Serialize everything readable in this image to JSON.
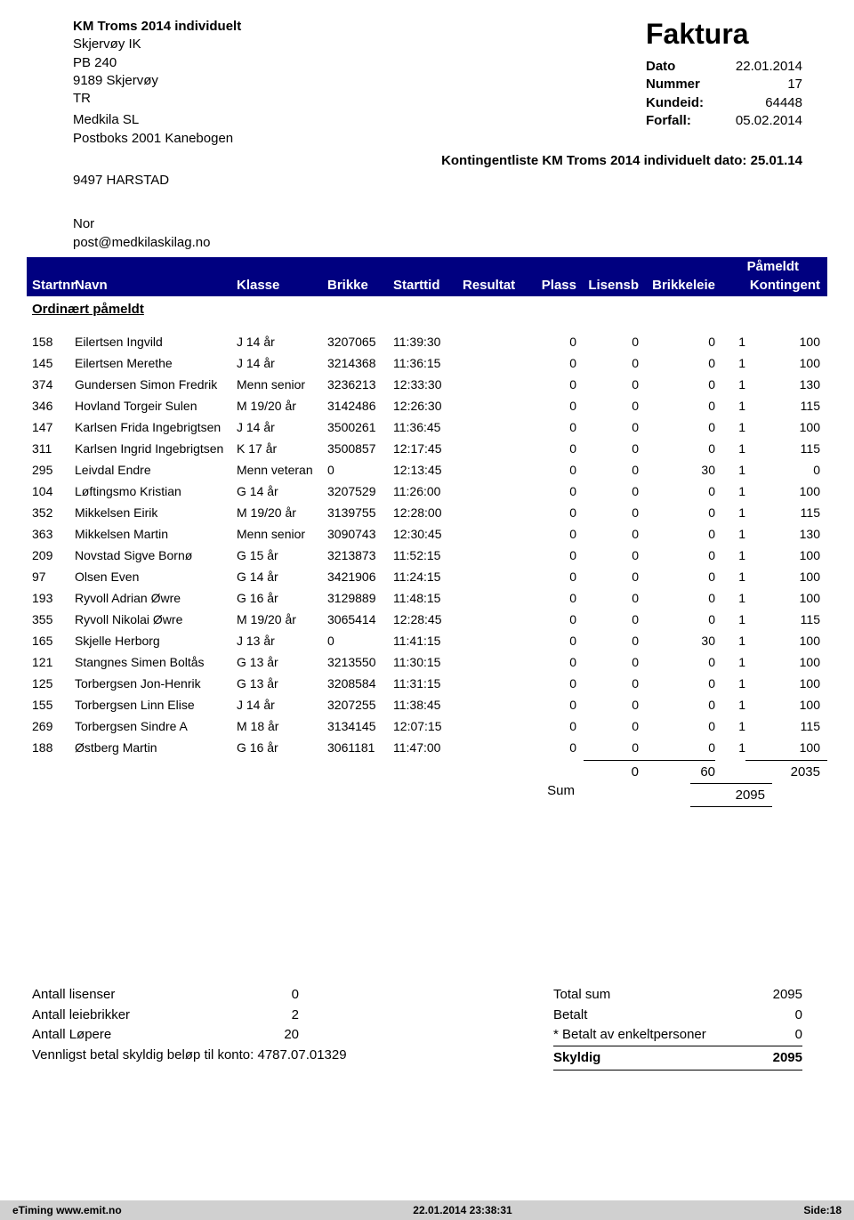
{
  "header": {
    "event_title": "KM Troms 2014 individuelt",
    "sender_name": "Skjervøy IK",
    "sender_pb": "PB 240",
    "sender_city": "9189 Skjervøy",
    "sender_region": "TR",
    "recipient_name": "Medkila SL",
    "recipient_addr": "Postboks 2001 Kanebogen",
    "recipient_city": "9497  HARSTAD",
    "faktura": "Faktura",
    "dato_label": "Dato",
    "dato": "22.01.2014",
    "nummer_label": "Nummer",
    "nummer": "17",
    "kundeid_label": "Kundeid:",
    "kundeid": "64448",
    "forfall_label": "Forfall:",
    "forfall": "05.02.2014",
    "konting_line": "Kontingentliste  KM Troms 2014 individuelt dato: 25.01.14",
    "country": "Nor",
    "email": "post@medkilaskilag.no"
  },
  "column_headers": {
    "pameldt_top": "Påmeldt",
    "startnr": "Startnr",
    "navn": "Navn",
    "klasse": "Klasse",
    "brikke": "Brikke",
    "starttid": "Starttid",
    "resultat": "Resultat",
    "plass": "Plass",
    "lisensb": "Lisensb",
    "brikkeleie": "Brikkeleie",
    "kontingent": "Kontingent"
  },
  "ordinaert_label": "Ordinært påmeldt",
  "rows": [
    {
      "startnr": "158",
      "navn": "Eilertsen  Ingvild",
      "klasse": "J 14 år",
      "brikke": "3207065",
      "starttid": "11:39:30",
      "plass": "0",
      "lisensb": "0",
      "brikkeleie": "0",
      "pameldt": "1",
      "kontingent": "100"
    },
    {
      "startnr": "145",
      "navn": "Eilertsen  Merethe",
      "klasse": "J 14 år",
      "brikke": "3214368",
      "starttid": "11:36:15",
      "plass": "0",
      "lisensb": "0",
      "brikkeleie": "0",
      "pameldt": "1",
      "kontingent": "100"
    },
    {
      "startnr": "374",
      "navn": "Gundersen  Simon Fredrik",
      "klasse": "Menn senior",
      "brikke": "3236213",
      "starttid": "12:33:30",
      "plass": "0",
      "lisensb": "0",
      "brikkeleie": "0",
      "pameldt": "1",
      "kontingent": "130"
    },
    {
      "startnr": "346",
      "navn": "Hovland  Torgeir Sulen",
      "klasse": "M 19/20 år",
      "brikke": "3142486",
      "starttid": "12:26:30",
      "plass": "0",
      "lisensb": "0",
      "brikkeleie": "0",
      "pameldt": "1",
      "kontingent": "115"
    },
    {
      "startnr": "147",
      "navn": "Karlsen  Frida Ingebrigtsen",
      "klasse": "J 14 år",
      "brikke": "3500261",
      "starttid": "11:36:45",
      "plass": "0",
      "lisensb": "0",
      "brikkeleie": "0",
      "pameldt": "1",
      "kontingent": "100"
    },
    {
      "startnr": "311",
      "navn": "Karlsen  Ingrid Ingebrigtsen",
      "klasse": "K 17 år",
      "brikke": "3500857",
      "starttid": "12:17:45",
      "plass": "0",
      "lisensb": "0",
      "brikkeleie": "0",
      "pameldt": "1",
      "kontingent": "115"
    },
    {
      "startnr": "295",
      "navn": "Leivdal  Endre",
      "klasse": "Menn veteran",
      "brikke": "0",
      "starttid": "12:13:45",
      "plass": "0",
      "lisensb": "0",
      "brikkeleie": "30",
      "pameldt": "1",
      "kontingent": "0"
    },
    {
      "startnr": "104",
      "navn": "Løftingsmo  Kristian",
      "klasse": "G 14 år",
      "brikke": "3207529",
      "starttid": "11:26:00",
      "plass": "0",
      "lisensb": "0",
      "brikkeleie": "0",
      "pameldt": "1",
      "kontingent": "100"
    },
    {
      "startnr": "352",
      "navn": "Mikkelsen  Eirik",
      "klasse": "M 19/20 år",
      "brikke": "3139755",
      "starttid": "12:28:00",
      "plass": "0",
      "lisensb": "0",
      "brikkeleie": "0",
      "pameldt": "1",
      "kontingent": "115"
    },
    {
      "startnr": "363",
      "navn": "Mikkelsen  Martin",
      "klasse": "Menn senior",
      "brikke": "3090743",
      "starttid": "12:30:45",
      "plass": "0",
      "lisensb": "0",
      "brikkeleie": "0",
      "pameldt": "1",
      "kontingent": "130"
    },
    {
      "startnr": "209",
      "navn": "Novstad  Sigve Bornø",
      "klasse": "G 15 år",
      "brikke": "3213873",
      "starttid": "11:52:15",
      "plass": "0",
      "lisensb": "0",
      "brikkeleie": "0",
      "pameldt": "1",
      "kontingent": "100"
    },
    {
      "startnr": "97",
      "navn": "Olsen  Even",
      "klasse": "G 14 år",
      "brikke": "3421906",
      "starttid": "11:24:15",
      "plass": "0",
      "lisensb": "0",
      "brikkeleie": "0",
      "pameldt": "1",
      "kontingent": "100"
    },
    {
      "startnr": "193",
      "navn": "Ryvoll  Adrian Øwre",
      "klasse": "G 16 år",
      "brikke": "3129889",
      "starttid": "11:48:15",
      "plass": "0",
      "lisensb": "0",
      "brikkeleie": "0",
      "pameldt": "1",
      "kontingent": "100"
    },
    {
      "startnr": "355",
      "navn": "Ryvoll  Nikolai Øwre",
      "klasse": "M 19/20 år",
      "brikke": "3065414",
      "starttid": "12:28:45",
      "plass": "0",
      "lisensb": "0",
      "brikkeleie": "0",
      "pameldt": "1",
      "kontingent": "115"
    },
    {
      "startnr": "165",
      "navn": "Skjelle  Herborg",
      "klasse": "J 13 år",
      "brikke": "0",
      "starttid": "11:41:15",
      "plass": "0",
      "lisensb": "0",
      "brikkeleie": "30",
      "pameldt": "1",
      "kontingent": "100"
    },
    {
      "startnr": "121",
      "navn": "Stangnes  Simen Boltås",
      "klasse": "G 13 år",
      "brikke": "3213550",
      "starttid": "11:30:15",
      "plass": "0",
      "lisensb": "0",
      "brikkeleie": "0",
      "pameldt": "1",
      "kontingent": "100"
    },
    {
      "startnr": "125",
      "navn": "Torbergsen  Jon-Henrik",
      "klasse": "G 13 år",
      "brikke": "3208584",
      "starttid": "11:31:15",
      "plass": "0",
      "lisensb": "0",
      "brikkeleie": "0",
      "pameldt": "1",
      "kontingent": "100"
    },
    {
      "startnr": "155",
      "navn": "Torbergsen  Linn Elise",
      "klasse": "J 14 år",
      "brikke": "3207255",
      "starttid": "11:38:45",
      "plass": "0",
      "lisensb": "0",
      "brikkeleie": "0",
      "pameldt": "1",
      "kontingent": "100"
    },
    {
      "startnr": "269",
      "navn": "Torbergsen  Sindre A",
      "klasse": "M 18 år",
      "brikke": "3134145",
      "starttid": "12:07:15",
      "plass": "0",
      "lisensb": "0",
      "brikkeleie": "0",
      "pameldt": "1",
      "kontingent": "115"
    },
    {
      "startnr": "188",
      "navn": "Østberg  Martin",
      "klasse": "G 16 år",
      "brikke": "3061181",
      "starttid": "11:47:00",
      "plass": "0",
      "lisensb": "0",
      "brikkeleie": "0",
      "pameldt": "1",
      "kontingent": "100"
    }
  ],
  "totals": {
    "lisensb": "0",
    "brikkeleie": "60",
    "kontingent": "2035",
    "sum_label": "Sum",
    "sum_value": "2095"
  },
  "bottom": {
    "lisenser_label": "Antall lisenser",
    "lisenser": "0",
    "leiebrikker_label": "Antall leiebrikker",
    "leiebrikker": "2",
    "lopere_label": "Antall Løpere",
    "lopere": "20",
    "konto_line": "Vennligst betal skyldig beløp til konto: 4787.07.01329",
    "totalsum_label": "Total sum",
    "totalsum": "2095",
    "betalt_label": "Betalt",
    "betalt": "0",
    "betaltav_label": "* Betalt av enkeltpersoner",
    "betaltav": "0",
    "skyldig_label": "Skyldig",
    "skyldig": "2095"
  },
  "footer": {
    "left": "eTiming www.emit.no",
    "center": "22.01.2014 23:38:31",
    "right": "Side:18"
  }
}
